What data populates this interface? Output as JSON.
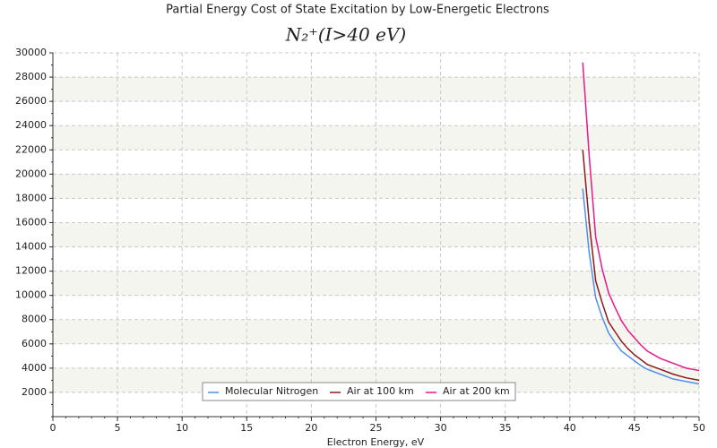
{
  "chart_data": {
    "type": "line",
    "title": "Partial Energy Cost of State Excitation by Low-Energetic Electrons",
    "subtitle": "N₂⁺(I>40 eV)",
    "x_label": "Electron Energy, eV",
    "x": [
      41,
      41.5,
      42,
      42.5,
      43,
      43.5,
      44,
      44.5,
      45,
      45.5,
      46,
      47,
      48,
      49,
      50
    ],
    "series": [
      {
        "name": "Molecular Nitrogen",
        "color": "#4f8fe6",
        "values": [
          18800,
          13500,
          9800,
          8200,
          6900,
          6100,
          5400,
          5000,
          4600,
          4200,
          3900,
          3500,
          3100,
          2900,
          2700
        ]
      },
      {
        "name": "Air at 100 km",
        "color": "#8b1a1a",
        "values": [
          22000,
          16000,
          11200,
          9400,
          7800,
          7000,
          6200,
          5600,
          5100,
          4700,
          4300,
          3900,
          3500,
          3200,
          3000
        ]
      },
      {
        "name": "Air at 200 km",
        "color": "#e8198b",
        "values": [
          29200,
          21500,
          14800,
          12200,
          10200,
          9000,
          7900,
          7100,
          6500,
          5900,
          5400,
          4800,
          4400,
          4000,
          3800
        ]
      }
    ],
    "xlim": [
      0,
      50
    ],
    "xticks": [
      0,
      5,
      10,
      15,
      20,
      25,
      30,
      35,
      40,
      45,
      50
    ],
    "ylim": [
      0,
      30000
    ],
    "yticks": [
      2000,
      4000,
      6000,
      8000,
      10000,
      12000,
      14000,
      16000,
      18000,
      20000,
      22000,
      24000,
      26000,
      28000,
      30000
    ],
    "grid": true,
    "legend": "bottom"
  }
}
